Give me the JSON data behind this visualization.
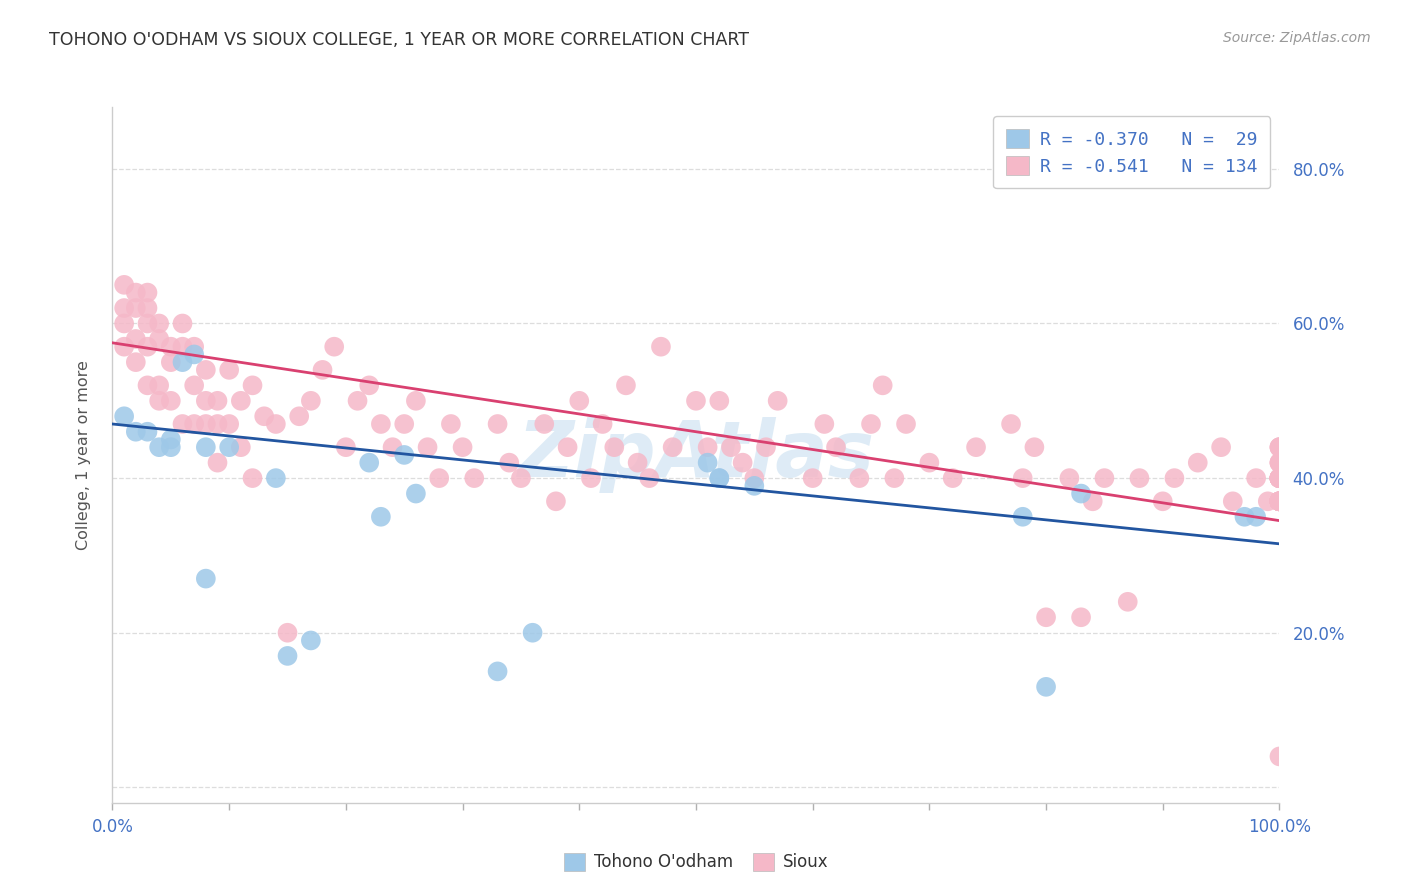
{
  "title": "TOHONO O'ODHAM VS SIOUX COLLEGE, 1 YEAR OR MORE CORRELATION CHART",
  "source_text": "Source: ZipAtlas.com",
  "ylabel": "College, 1 year or more",
  "xlim": [
    0.0,
    1.0
  ],
  "ylim": [
    -0.02,
    0.88
  ],
  "xtick_positions": [
    0.0,
    0.1,
    0.2,
    0.3,
    0.4,
    0.5,
    0.6,
    0.7,
    0.8,
    0.9,
    1.0
  ],
  "xticklabels_shown": [
    "0.0%",
    "",
    "",
    "",
    "",
    "",
    "",
    "",
    "",
    "",
    "100.0%"
  ],
  "ytick_positions": [
    0.0,
    0.2,
    0.4,
    0.6,
    0.8
  ],
  "yticklabels_right": [
    "",
    "20.0%",
    "40.0%",
    "60.0%",
    "80.0%"
  ],
  "R_blue": -0.37,
  "N_blue": 29,
  "R_pink": -0.541,
  "N_pink": 134,
  "blue_scatter_color": "#9EC8E8",
  "pink_scatter_color": "#F5B8C8",
  "blue_line_color": "#2255A0",
  "pink_line_color": "#D94070",
  "legend_text_color": "#4472C4",
  "watermark_color": "#C8DFF0",
  "axis_tick_color": "#4472C4",
  "title_color": "#333333",
  "grid_color": "#DDDDDD",
  "blue_x": [
    0.01,
    0.02,
    0.03,
    0.04,
    0.05,
    0.05,
    0.06,
    0.07,
    0.08,
    0.08,
    0.1,
    0.14,
    0.15,
    0.17,
    0.22,
    0.23,
    0.25,
    0.26,
    0.33,
    0.36,
    0.51,
    0.52,
    0.52,
    0.55,
    0.78,
    0.8,
    0.83,
    0.97,
    0.98
  ],
  "blue_y": [
    0.48,
    0.46,
    0.46,
    0.44,
    0.45,
    0.44,
    0.55,
    0.56,
    0.44,
    0.27,
    0.44,
    0.4,
    0.17,
    0.19,
    0.42,
    0.35,
    0.43,
    0.38,
    0.15,
    0.2,
    0.42,
    0.4,
    0.4,
    0.39,
    0.35,
    0.13,
    0.38,
    0.35,
    0.35
  ],
  "pink_x": [
    0.01,
    0.01,
    0.01,
    0.01,
    0.02,
    0.02,
    0.02,
    0.02,
    0.03,
    0.03,
    0.03,
    0.03,
    0.03,
    0.04,
    0.04,
    0.04,
    0.04,
    0.05,
    0.05,
    0.05,
    0.06,
    0.06,
    0.06,
    0.07,
    0.07,
    0.07,
    0.08,
    0.08,
    0.08,
    0.09,
    0.09,
    0.09,
    0.1,
    0.1,
    0.11,
    0.11,
    0.12,
    0.12,
    0.13,
    0.14,
    0.15,
    0.16,
    0.17,
    0.18,
    0.19,
    0.2,
    0.21,
    0.22,
    0.23,
    0.24,
    0.25,
    0.26,
    0.27,
    0.28,
    0.29,
    0.3,
    0.31,
    0.33,
    0.34,
    0.35,
    0.37,
    0.38,
    0.39,
    0.4,
    0.41,
    0.42,
    0.43,
    0.44,
    0.45,
    0.46,
    0.47,
    0.48,
    0.5,
    0.51,
    0.52,
    0.53,
    0.54,
    0.55,
    0.56,
    0.57,
    0.6,
    0.61,
    0.62,
    0.64,
    0.65,
    0.66,
    0.67,
    0.68,
    0.7,
    0.72,
    0.74,
    0.77,
    0.78,
    0.79,
    0.8,
    0.82,
    0.83,
    0.84,
    0.85,
    0.87,
    0.88,
    0.9,
    0.91,
    0.93,
    0.95,
    0.96,
    0.98,
    0.99,
    1.0,
    1.0,
    1.0,
    1.0,
    1.0,
    1.0,
    1.0,
    1.0,
    1.0,
    1.0,
    1.0,
    1.0,
    1.0,
    1.0,
    1.0,
    1.0,
    1.0,
    1.0,
    1.0,
    1.0,
    1.0,
    1.0,
    1.0,
    1.0,
    1.0,
    1.0
  ],
  "pink_y": [
    0.65,
    0.62,
    0.6,
    0.57,
    0.64,
    0.62,
    0.58,
    0.55,
    0.64,
    0.62,
    0.6,
    0.57,
    0.52,
    0.6,
    0.58,
    0.52,
    0.5,
    0.57,
    0.55,
    0.5,
    0.6,
    0.57,
    0.47,
    0.57,
    0.52,
    0.47,
    0.54,
    0.5,
    0.47,
    0.5,
    0.47,
    0.42,
    0.54,
    0.47,
    0.5,
    0.44,
    0.52,
    0.4,
    0.48,
    0.47,
    0.2,
    0.48,
    0.5,
    0.54,
    0.57,
    0.44,
    0.5,
    0.52,
    0.47,
    0.44,
    0.47,
    0.5,
    0.44,
    0.4,
    0.47,
    0.44,
    0.4,
    0.47,
    0.42,
    0.4,
    0.47,
    0.37,
    0.44,
    0.5,
    0.4,
    0.47,
    0.44,
    0.52,
    0.42,
    0.4,
    0.57,
    0.44,
    0.5,
    0.44,
    0.5,
    0.44,
    0.42,
    0.4,
    0.44,
    0.5,
    0.4,
    0.47,
    0.44,
    0.4,
    0.47,
    0.52,
    0.4,
    0.47,
    0.42,
    0.4,
    0.44,
    0.47,
    0.4,
    0.44,
    0.22,
    0.4,
    0.22,
    0.37,
    0.4,
    0.24,
    0.4,
    0.37,
    0.4,
    0.42,
    0.44,
    0.37,
    0.4,
    0.37,
    0.44,
    0.37,
    0.4,
    0.37,
    0.4,
    0.37,
    0.4,
    0.44,
    0.4,
    0.42,
    0.37,
    0.4,
    0.44,
    0.4,
    0.42,
    0.37,
    0.4,
    0.37,
    0.4,
    0.04,
    0.37,
    0.4,
    0.37,
    0.4,
    0.37,
    0.42
  ],
  "blue_line_x0": 0.0,
  "blue_line_x1": 1.0,
  "blue_line_y0": 0.47,
  "blue_line_y1": 0.315,
  "pink_line_x0": 0.0,
  "pink_line_x1": 1.0,
  "pink_line_y0": 0.575,
  "pink_line_y1": 0.345
}
